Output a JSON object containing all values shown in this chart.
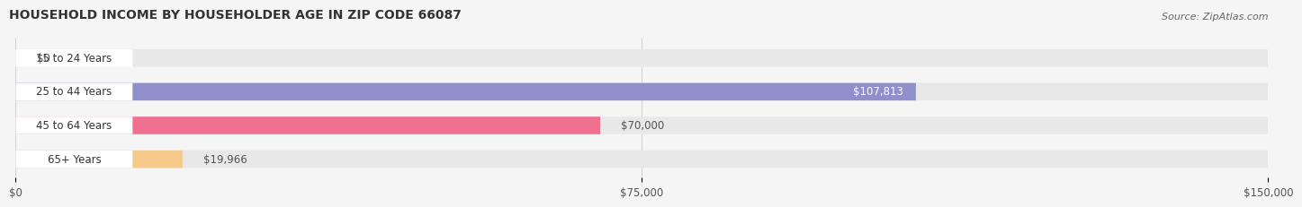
{
  "title": "HOUSEHOLD INCOME BY HOUSEHOLDER AGE IN ZIP CODE 66087",
  "source": "Source: ZipAtlas.com",
  "categories": [
    "15 to 24 Years",
    "25 to 44 Years",
    "45 to 64 Years",
    "65+ Years"
  ],
  "values": [
    0,
    107813,
    70000,
    19966
  ],
  "bar_colors": [
    "#6ecfcf",
    "#8f8fcc",
    "#f07090",
    "#f5c98a"
  ],
  "bg_color": "#f5f5f5",
  "bar_bg_color": "#e8e8e8",
  "xmax": 150000,
  "xticks": [
    0,
    75000,
    150000
  ],
  "xticklabels": [
    "$0",
    "$75,000",
    "$150,000"
  ],
  "value_labels": [
    "$0",
    "$107,813",
    "$70,000",
    "$19,966"
  ],
  "value_label_inside": [
    false,
    true,
    false,
    false
  ],
  "title_fontsize": 10,
  "source_fontsize": 8,
  "label_fontsize": 8.5,
  "tick_fontsize": 8.5
}
